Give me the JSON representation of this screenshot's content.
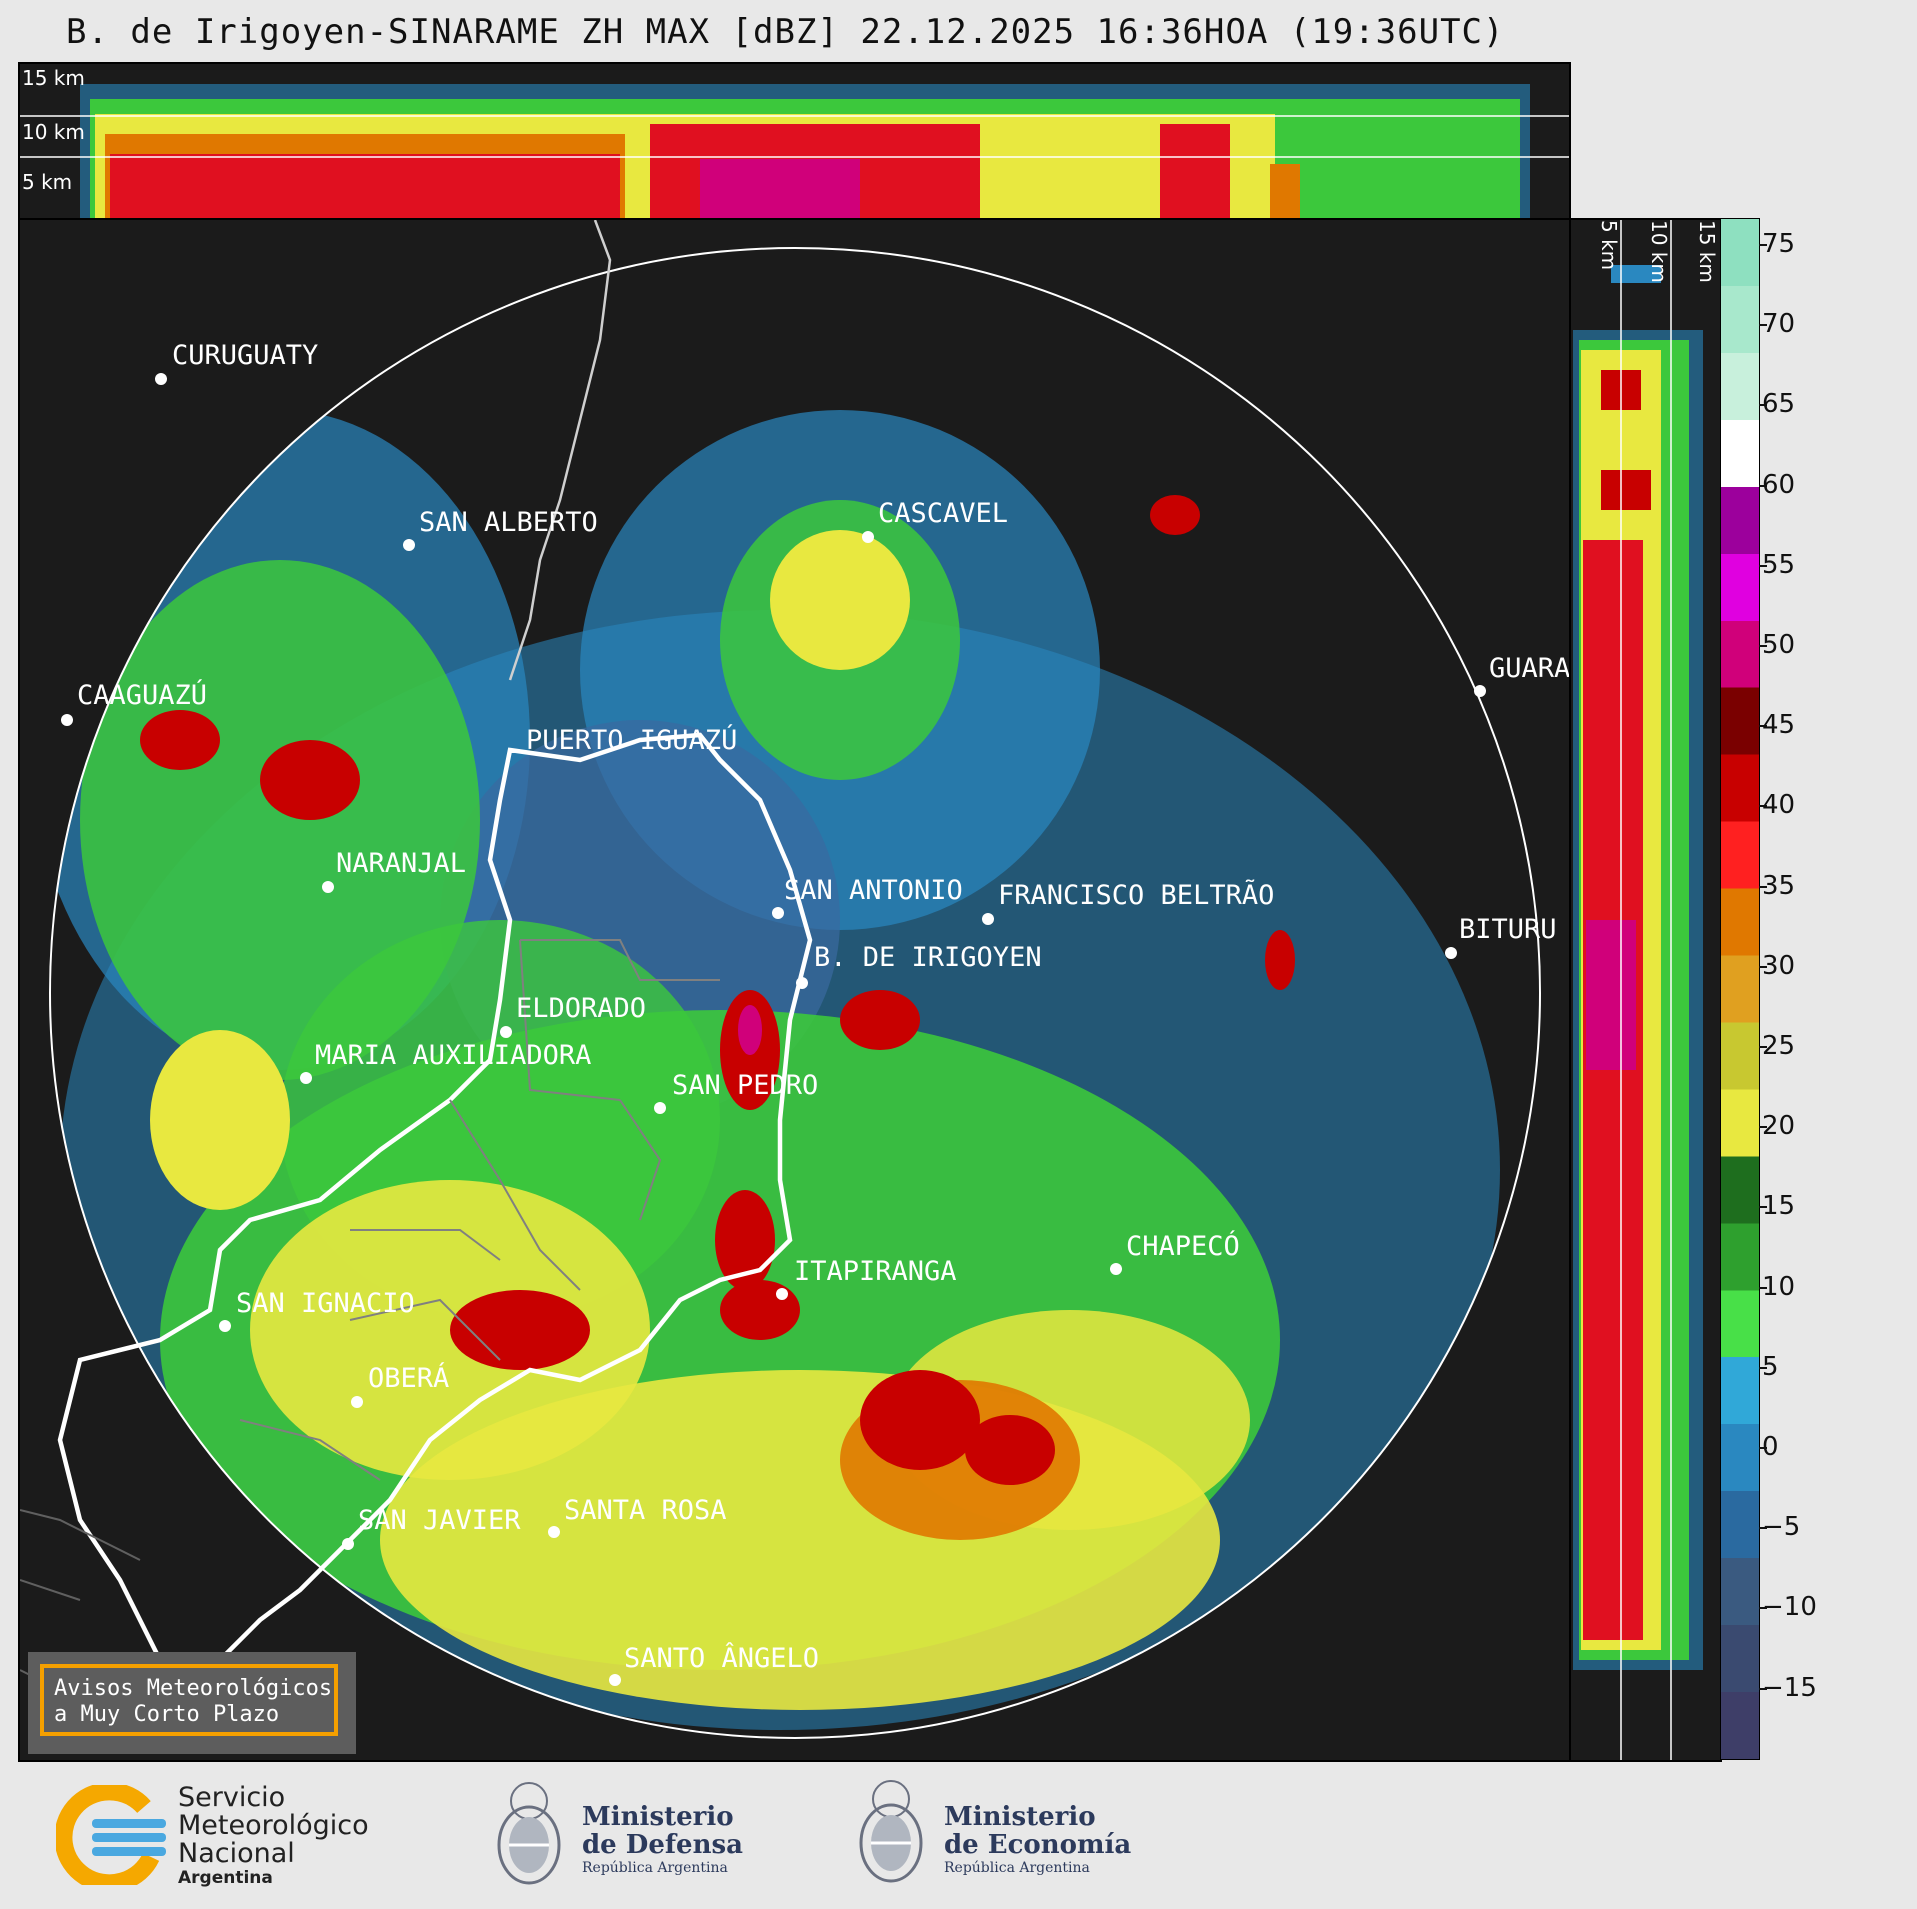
{
  "title": "B. de Irigoyen-SINARAME ZH MAX [dBZ] 22.12.2025 16:36HOA (19:36UTC)",
  "height_labels": {
    "km15": "15 km",
    "km10": "10 km",
    "km5": "5 km"
  },
  "cities": [
    {
      "name": "CURUGUATY"
    },
    {
      "name": "SAN ALBERTO"
    },
    {
      "name": "CASCAVEL"
    },
    {
      "name": "CAAGUAZÚ"
    },
    {
      "name": "GUARA"
    },
    {
      "name": "PUERTO IGUAZÚ"
    },
    {
      "name": "NARANJAL"
    },
    {
      "name": "SAN ANTONIO"
    },
    {
      "name": "FRANCISCO BELTRÃO"
    },
    {
      "name": "BITURU"
    },
    {
      "name": "B. DE IRIGOYEN"
    },
    {
      "name": "ELDORADO"
    },
    {
      "name": "MARIA AUXILIADORA"
    },
    {
      "name": "SAN PEDRO"
    },
    {
      "name": "CHAPECÓ"
    },
    {
      "name": "ITAPIRANGA"
    },
    {
      "name": "SAN IGNACIO"
    },
    {
      "name": "OBERÁ"
    },
    {
      "name": "SAN JAVIER"
    },
    {
      "name": "SANTA ROSA"
    },
    {
      "name": "SANTO ÂNGELO"
    }
  ],
  "colorbar": {
    "unit": "dBZ",
    "ticks": [
      "75",
      "70",
      "65",
      "60",
      "55",
      "50",
      "45",
      "40",
      "35",
      "30",
      "25",
      "20",
      "15",
      "10",
      "5",
      "0",
      "−5",
      "−10",
      "−15"
    ],
    "colors": [
      "#8ee0c0",
      "#a8e8cc",
      "#c8f0dc",
      "#ffffff",
      "#9c009c",
      "#e000e0",
      "#d0007a",
      "#7a0000",
      "#c80000",
      "#ff2020",
      "#e07800",
      "#e0a020",
      "#c8c830",
      "#e8e840",
      "#1e6e1e",
      "#2ea02e",
      "#48e048",
      "#30a8d8",
      "#2a88c0",
      "#2a6aa0",
      "#3a5a80",
      "#3a4a70",
      "#3e3e68"
    ]
  },
  "notice": {
    "line1": "Avisos Meteorológicos",
    "line2": "a Muy Corto Plazo"
  },
  "logos": {
    "smn_line1": "Servicio",
    "smn_line2": "Meteorológico",
    "smn_line3": "Nacional",
    "smn_line4": "Argentina",
    "defensa_line1": "Ministerio",
    "defensa_line2": "de Defensa",
    "defensa_line3": "República Argentina",
    "economia_line1": "Ministerio",
    "economia_line2": "de Economía",
    "economia_line3": "República Argentina"
  }
}
